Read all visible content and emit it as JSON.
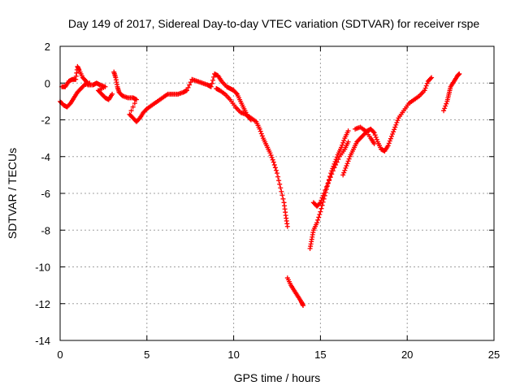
{
  "chart_data": {
    "type": "scatter",
    "title": "Day 149 of 2017, Sidereal Day-to-day VTEC variation (SDTVAR) for receiver rspe",
    "xlabel": "GPS time / hours",
    "ylabel": "SDTVAR / TECUs",
    "xlim": [
      0,
      25
    ],
    "ylim": [
      -14,
      2
    ],
    "xticks": [
      "0",
      "5",
      "10",
      "15",
      "20",
      "25"
    ],
    "yticks": [
      "2",
      "0",
      "-2",
      "-4",
      "-6",
      "-8",
      "-10",
      "-12",
      "-14"
    ],
    "grid": true,
    "marker": "plus",
    "color": "#ff0000",
    "series": [
      {
        "name": "",
        "points": [
          [
            0.0,
            -1.0
          ],
          [
            0.2,
            -1.2
          ],
          [
            0.4,
            -1.3
          ],
          [
            0.6,
            -1.1
          ],
          [
            0.8,
            -0.8
          ],
          [
            1.0,
            -0.5
          ],
          [
            1.2,
            -0.3
          ],
          [
            1.4,
            -0.1
          ],
          [
            1.7,
            0.0
          ],
          [
            0.1,
            -0.2
          ],
          [
            0.3,
            -0.2
          ],
          [
            0.5,
            0.1
          ],
          [
            0.7,
            0.2
          ],
          [
            0.9,
            0.2
          ],
          [
            1.0,
            0.9
          ],
          [
            1.1,
            0.7
          ],
          [
            1.3,
            0.3
          ],
          [
            1.5,
            0.1
          ],
          [
            1.6,
            -0.1
          ],
          [
            1.9,
            -0.1
          ],
          [
            2.1,
            0.0
          ],
          [
            2.3,
            -0.1
          ],
          [
            2.6,
            -0.2
          ],
          [
            2.2,
            -0.4
          ],
          [
            2.4,
            -0.6
          ],
          [
            2.6,
            -0.8
          ],
          [
            2.8,
            -0.9
          ],
          [
            3.0,
            -0.6
          ],
          [
            3.1,
            0.6
          ],
          [
            3.2,
            0.3
          ],
          [
            3.3,
            -0.2
          ],
          [
            3.4,
            -0.5
          ],
          [
            3.6,
            -0.7
          ],
          [
            3.9,
            -0.8
          ],
          [
            4.2,
            -0.8
          ],
          [
            4.4,
            -0.9
          ],
          [
            4.0,
            -1.7
          ],
          [
            4.2,
            -1.9
          ],
          [
            4.4,
            -2.1
          ],
          [
            4.6,
            -1.9
          ],
          [
            4.8,
            -1.6
          ],
          [
            5.0,
            -1.4
          ],
          [
            5.3,
            -1.2
          ],
          [
            5.6,
            -1.0
          ],
          [
            5.9,
            -0.8
          ],
          [
            6.2,
            -0.6
          ],
          [
            6.5,
            -0.6
          ],
          [
            6.8,
            -0.6
          ],
          [
            7.1,
            -0.5
          ],
          [
            7.3,
            -0.4
          ],
          [
            7.6,
            0.2
          ],
          [
            7.9,
            0.1
          ],
          [
            8.2,
            0.0
          ],
          [
            8.5,
            -0.1
          ],
          [
            8.7,
            -0.2
          ],
          [
            8.9,
            0.5
          ],
          [
            9.1,
            0.4
          ],
          [
            9.3,
            0.1
          ],
          [
            9.6,
            -0.2
          ],
          [
            9.8,
            -0.3
          ],
          [
            10.0,
            -0.4
          ],
          [
            10.2,
            -0.6
          ],
          [
            10.4,
            -1.0
          ],
          [
            10.6,
            -1.4
          ],
          [
            10.8,
            -1.8
          ],
          [
            11.0,
            -2.0
          ],
          [
            9.0,
            -0.3
          ],
          [
            9.2,
            -0.4
          ],
          [
            9.5,
            -0.6
          ],
          [
            9.8,
            -0.9
          ],
          [
            10.1,
            -1.3
          ],
          [
            10.4,
            -1.6
          ],
          [
            10.7,
            -1.7
          ],
          [
            11.0,
            -1.9
          ],
          [
            11.3,
            -2.1
          ],
          [
            11.5,
            -2.5
          ],
          [
            11.7,
            -3.0
          ],
          [
            11.9,
            -3.4
          ],
          [
            12.1,
            -3.8
          ],
          [
            12.3,
            -4.3
          ],
          [
            12.5,
            -4.9
          ],
          [
            12.7,
            -5.7
          ],
          [
            12.9,
            -6.5
          ],
          [
            13.0,
            -7.2
          ],
          [
            13.1,
            -7.8
          ],
          [
            13.1,
            -10.6
          ],
          [
            13.3,
            -11.0
          ],
          [
            13.5,
            -11.3
          ],
          [
            13.7,
            -11.6
          ],
          [
            13.9,
            -11.9
          ],
          [
            14.0,
            -12.1
          ],
          [
            14.4,
            -9.0
          ],
          [
            14.5,
            -8.5
          ],
          [
            14.6,
            -8.0
          ],
          [
            14.8,
            -7.6
          ],
          [
            15.0,
            -7.0
          ],
          [
            15.2,
            -6.3
          ],
          [
            15.4,
            -5.6
          ],
          [
            15.6,
            -4.9
          ],
          [
            15.8,
            -4.4
          ],
          [
            16.0,
            -3.9
          ],
          [
            16.2,
            -3.5
          ],
          [
            16.4,
            -3.0
          ],
          [
            16.6,
            -2.6
          ],
          [
            14.6,
            -6.5
          ],
          [
            14.8,
            -6.7
          ],
          [
            15.0,
            -6.5
          ],
          [
            15.2,
            -6.0
          ],
          [
            15.5,
            -5.3
          ],
          [
            15.8,
            -4.6
          ],
          [
            16.1,
            -4.0
          ],
          [
            16.4,
            -3.6
          ],
          [
            16.6,
            -3.2
          ],
          [
            16.3,
            -5.0
          ],
          [
            16.5,
            -4.5
          ],
          [
            16.7,
            -4.0
          ],
          [
            16.9,
            -3.6
          ],
          [
            17.1,
            -3.2
          ],
          [
            17.3,
            -3.0
          ],
          [
            17.5,
            -2.8
          ],
          [
            17.7,
            -2.6
          ],
          [
            17.9,
            -2.5
          ],
          [
            18.1,
            -2.7
          ],
          [
            18.3,
            -3.2
          ],
          [
            18.5,
            -3.6
          ],
          [
            18.7,
            -3.7
          ],
          [
            18.9,
            -3.4
          ],
          [
            19.1,
            -2.9
          ],
          [
            19.3,
            -2.4
          ],
          [
            19.5,
            -1.9
          ],
          [
            19.8,
            -1.5
          ],
          [
            20.1,
            -1.1
          ],
          [
            20.4,
            -0.9
          ],
          [
            20.7,
            -0.7
          ],
          [
            21.0,
            -0.4
          ],
          [
            21.2,
            0.1
          ],
          [
            21.4,
            0.3
          ],
          [
            17.0,
            -2.5
          ],
          [
            17.3,
            -2.4
          ],
          [
            17.6,
            -2.6
          ],
          [
            17.9,
            -3.0
          ],
          [
            18.1,
            -3.3
          ],
          [
            22.1,
            -1.5
          ],
          [
            22.3,
            -1.0
          ],
          [
            22.4,
            -0.6
          ],
          [
            22.5,
            -0.2
          ],
          [
            22.7,
            0.1
          ],
          [
            22.9,
            0.4
          ],
          [
            23.0,
            0.5
          ]
        ]
      }
    ]
  }
}
